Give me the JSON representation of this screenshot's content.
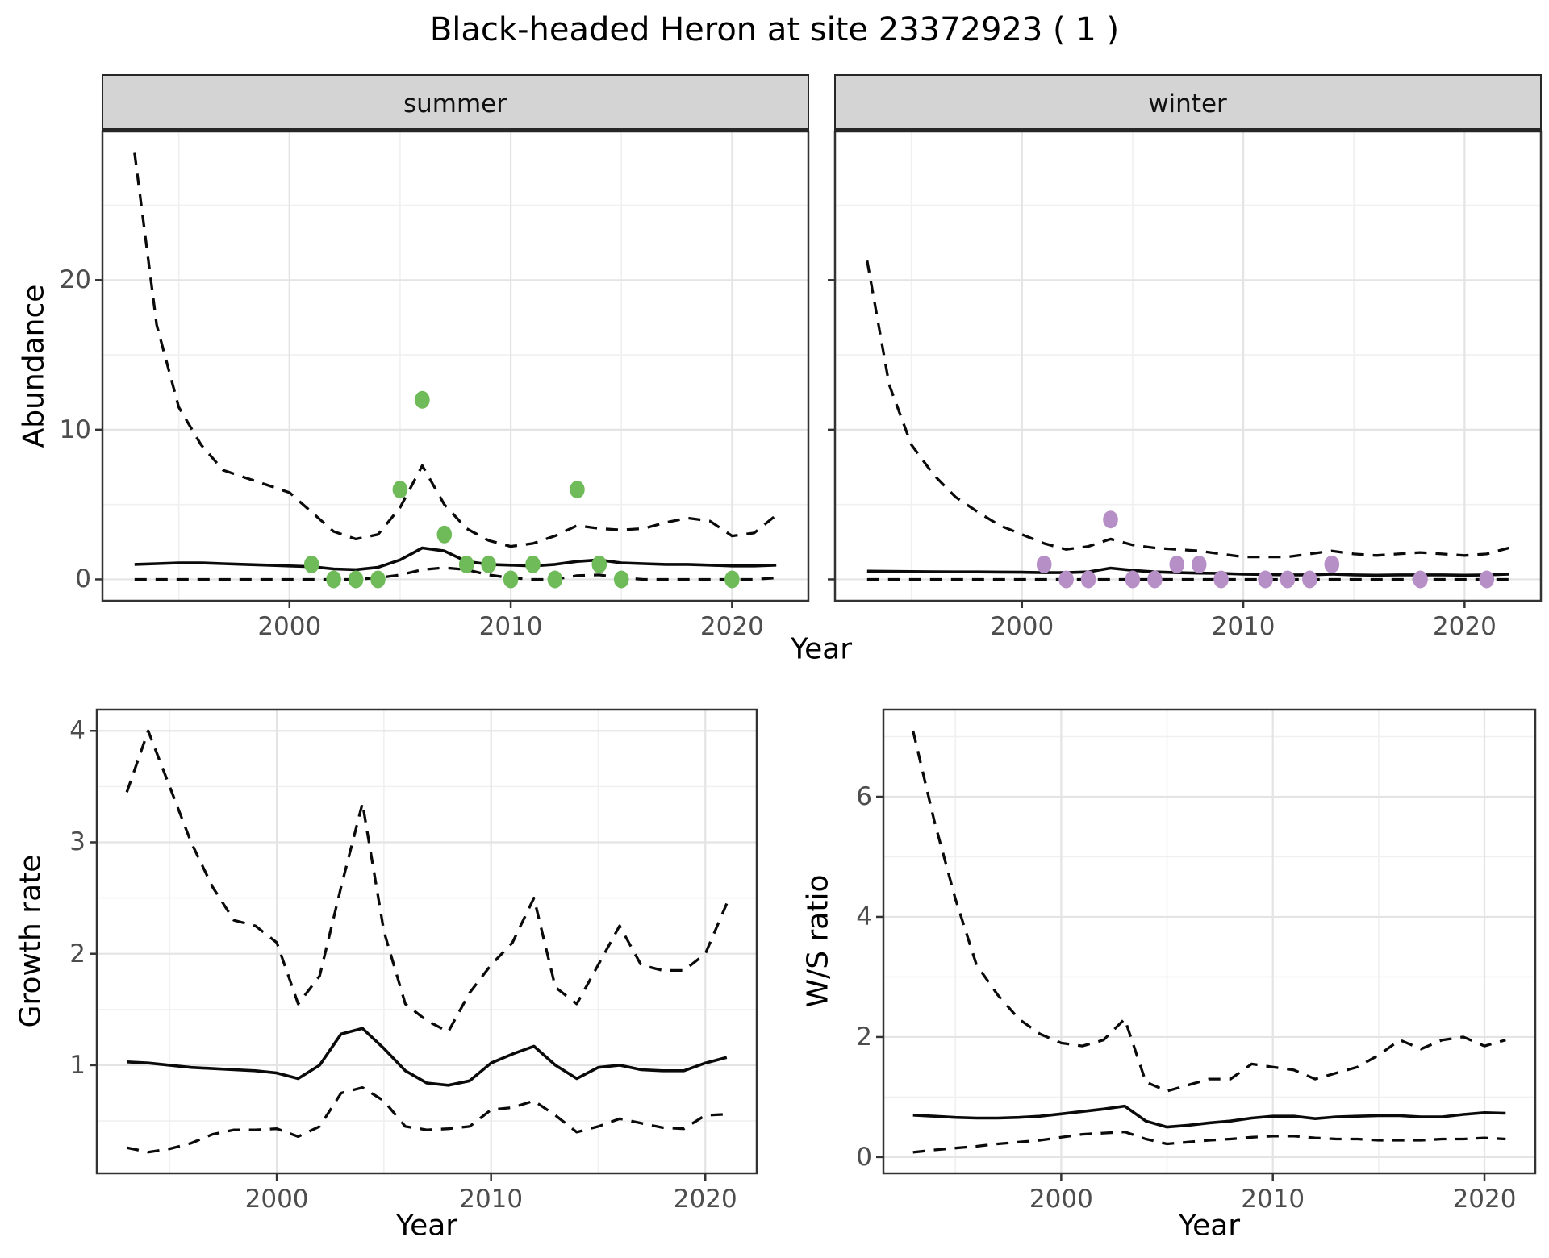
{
  "title": "Black-headed Heron at site 23372923 ( 1 )",
  "colors": {
    "summer_point": "#6fba59",
    "winter_point": "#b78fc7",
    "line": "#0a0a0a",
    "major_grid": "#e4e4e4",
    "minor_grid": "#f0f0f0",
    "panel_border": "#333333",
    "strip_fill": "#d4d4d4",
    "strip_border": "#262626",
    "tick_mark": "#333333",
    "tick_text": "#4d4d4d"
  },
  "chart_data": [
    {
      "id": "abundance_summer",
      "type": "line",
      "facet_label": "summer",
      "xlabel": "Year",
      "ylabel": "Abundance",
      "show_y_labels": true,
      "xlim": [
        1991.55,
        2023.45
      ],
      "ylim": [
        -1.43,
        29.93
      ],
      "x_ticks": [
        2000,
        2010,
        2020
      ],
      "x_minor": [
        1995,
        2005,
        2015
      ],
      "y_ticks": [
        0,
        10,
        20
      ],
      "y_minor": [
        5,
        15,
        25
      ],
      "x": [
        1993,
        1994,
        1995,
        1996,
        1997,
        1998,
        1999,
        2000,
        2001,
        2002,
        2003,
        2004,
        2005,
        2006,
        2007,
        2008,
        2009,
        2010,
        2011,
        2012,
        2013,
        2014,
        2015,
        2016,
        2017,
        2018,
        2019,
        2020,
        2021,
        2022
      ],
      "series": [
        {
          "name": "upper_95ci",
          "style": "dashed",
          "values": [
            28.5,
            17,
            11.5,
            9,
            7.3,
            6.8,
            6.3,
            5.8,
            4.5,
            3.2,
            2.7,
            3.0,
            4.8,
            7.6,
            5.0,
            3.4,
            2.6,
            2.2,
            2.4,
            2.9,
            3.6,
            3.4,
            3.3,
            3.4,
            3.8,
            4.1,
            3.9,
            2.9,
            3.1,
            4.3
          ]
        },
        {
          "name": "median",
          "style": "solid",
          "values": [
            1.0,
            1.05,
            1.1,
            1.1,
            1.05,
            1.0,
            0.95,
            0.9,
            0.85,
            0.7,
            0.65,
            0.8,
            1.3,
            2.1,
            1.9,
            1.2,
            1.0,
            0.95,
            0.9,
            1.0,
            1.2,
            1.3,
            1.1,
            1.05,
            1.0,
            1.0,
            0.95,
            0.9,
            0.9,
            0.95
          ]
        },
        {
          "name": "lower_95ci",
          "style": "dashed",
          "values": [
            0,
            0,
            0,
            0,
            0,
            0,
            0,
            0,
            0,
            0,
            0,
            0.1,
            0.3,
            0.65,
            0.78,
            0.65,
            0.3,
            0.1,
            0,
            0,
            0.25,
            0.3,
            0.1,
            0,
            0,
            0,
            0,
            0,
            0,
            0.1
          ]
        }
      ],
      "points": {
        "name": "observed_counts",
        "color_key": "summer_point",
        "xy": [
          [
            2001,
            1
          ],
          [
            2002,
            0
          ],
          [
            2003,
            0
          ],
          [
            2004,
            0
          ],
          [
            2005,
            6
          ],
          [
            2006,
            12
          ],
          [
            2007,
            3
          ],
          [
            2008,
            1
          ],
          [
            2009,
            1
          ],
          [
            2010,
            0
          ],
          [
            2011,
            1
          ],
          [
            2012,
            0
          ],
          [
            2013,
            6
          ],
          [
            2014,
            1
          ],
          [
            2015,
            0
          ],
          [
            2020,
            0
          ]
        ]
      }
    },
    {
      "id": "abundance_winter",
      "type": "line",
      "facet_label": "winter",
      "xlabel": "Year",
      "ylabel": "Abundance",
      "show_y_labels": false,
      "xlim": [
        1991.55,
        2023.45
      ],
      "ylim": [
        -1.43,
        29.93
      ],
      "x_ticks": [
        2000,
        2010,
        2020
      ],
      "x_minor": [
        1995,
        2005,
        2015
      ],
      "y_ticks": [
        0,
        10,
        20
      ],
      "y_minor": [
        5,
        15,
        25
      ],
      "x": [
        1993,
        1994,
        1995,
        1996,
        1997,
        1998,
        1999,
        2000,
        2001,
        2002,
        2003,
        2004,
        2005,
        2006,
        2007,
        2008,
        2009,
        2010,
        2011,
        2012,
        2013,
        2014,
        2015,
        2016,
        2017,
        2018,
        2019,
        2020,
        2021,
        2022
      ],
      "series": [
        {
          "name": "upper_95ci",
          "style": "dashed",
          "values": [
            21.3,
            13,
            9,
            7,
            5.5,
            4.5,
            3.6,
            3.0,
            2.4,
            2.0,
            2.2,
            2.7,
            2.3,
            2.1,
            2.0,
            1.9,
            1.7,
            1.5,
            1.5,
            1.5,
            1.7,
            1.9,
            1.7,
            1.6,
            1.7,
            1.8,
            1.7,
            1.6,
            1.7,
            2.1
          ]
        },
        {
          "name": "median",
          "style": "solid",
          "values": [
            0.55,
            0.53,
            0.52,
            0.51,
            0.5,
            0.5,
            0.49,
            0.48,
            0.45,
            0.45,
            0.5,
            0.75,
            0.6,
            0.5,
            0.45,
            0.42,
            0.4,
            0.35,
            0.32,
            0.3,
            0.3,
            0.35,
            0.3,
            0.28,
            0.3,
            0.3,
            0.3,
            0.28,
            0.3,
            0.35
          ]
        },
        {
          "name": "lower_95ci",
          "style": "dashed",
          "values": [
            0,
            0,
            0,
            0,
            0,
            0,
            0,
            0,
            0,
            0,
            0,
            0,
            0,
            0,
            0,
            0,
            0,
            0,
            0,
            0,
            0,
            0,
            0,
            0,
            0,
            0,
            0,
            0,
            0,
            0
          ]
        }
      ],
      "points": {
        "name": "observed_counts",
        "color_key": "winter_point",
        "xy": [
          [
            2001,
            1
          ],
          [
            2002,
            0
          ],
          [
            2003,
            0
          ],
          [
            2004,
            4
          ],
          [
            2005,
            0
          ],
          [
            2006,
            0
          ],
          [
            2007,
            1
          ],
          [
            2008,
            1
          ],
          [
            2009,
            0
          ],
          [
            2011,
            0
          ],
          [
            2012,
            0
          ],
          [
            2013,
            0
          ],
          [
            2014,
            1
          ],
          [
            2018,
            0
          ],
          [
            2021,
            0
          ]
        ]
      }
    },
    {
      "id": "growth_rate",
      "type": "line",
      "facet_label": null,
      "xlabel": "Year",
      "ylabel": "Growth rate",
      "show_y_labels": true,
      "xlim": [
        1991.6,
        2022.4
      ],
      "ylim": [
        0.03,
        4.19
      ],
      "x_ticks": [
        2000,
        2010,
        2020
      ],
      "x_minor": [
        1995,
        2005,
        2015
      ],
      "y_ticks": [
        1,
        2,
        3,
        4
      ],
      "y_minor": [
        0.5,
        1.5,
        2.5,
        3.5
      ],
      "x": [
        1993,
        1994,
        1995,
        1996,
        1997,
        1998,
        1999,
        2000,
        2001,
        2002,
        2003,
        2004,
        2005,
        2006,
        2007,
        2008,
        2009,
        2010,
        2011,
        2012,
        2013,
        2014,
        2015,
        2016,
        2017,
        2018,
        2019,
        2020,
        2021
      ],
      "series": [
        {
          "name": "upper_95ci",
          "style": "dashed",
          "values": [
            3.45,
            4.0,
            3.5,
            3.0,
            2.6,
            2.3,
            2.25,
            2.1,
            1.55,
            1.8,
            2.6,
            3.35,
            2.2,
            1.55,
            1.4,
            1.3,
            1.65,
            1.9,
            2.1,
            2.5,
            1.7,
            1.55,
            1.9,
            2.25,
            1.9,
            1.85,
            1.85,
            2.0,
            2.45
          ]
        },
        {
          "name": "median",
          "style": "solid",
          "values": [
            1.03,
            1.02,
            1.0,
            0.98,
            0.97,
            0.96,
            0.95,
            0.93,
            0.88,
            1.0,
            1.28,
            1.33,
            1.15,
            0.95,
            0.84,
            0.82,
            0.86,
            1.02,
            1.1,
            1.17,
            1.0,
            0.88,
            0.98,
            1.0,
            0.96,
            0.95,
            0.95,
            1.02,
            1.07
          ]
        },
        {
          "name": "lower_95ci",
          "style": "dashed",
          "values": [
            0.26,
            0.22,
            0.25,
            0.3,
            0.38,
            0.42,
            0.42,
            0.43,
            0.36,
            0.45,
            0.75,
            0.8,
            0.68,
            0.45,
            0.42,
            0.43,
            0.45,
            0.6,
            0.62,
            0.68,
            0.55,
            0.4,
            0.45,
            0.52,
            0.48,
            0.44,
            0.43,
            0.55,
            0.56
          ]
        }
      ],
      "points": null
    },
    {
      "id": "ws_ratio",
      "type": "line",
      "facet_label": null,
      "xlabel": "Year",
      "ylabel": "W/S ratio",
      "show_y_labels": true,
      "xlim": [
        1991.6,
        2022.4
      ],
      "ylim": [
        -0.27,
        7.45
      ],
      "x_ticks": [
        2000,
        2010,
        2020
      ],
      "x_minor": [
        1995,
        2005,
        2015
      ],
      "y_ticks": [
        0,
        2,
        4,
        6
      ],
      "y_minor": [
        1,
        3,
        5,
        7
      ],
      "x": [
        1993,
        1994,
        1995,
        1996,
        1997,
        1998,
        1999,
        2000,
        2001,
        2002,
        2003,
        2004,
        2005,
        2006,
        2007,
        2008,
        2009,
        2010,
        2011,
        2012,
        2013,
        2014,
        2015,
        2016,
        2017,
        2018,
        2019,
        2020,
        2021
      ],
      "series": [
        {
          "name": "upper_95ci",
          "style": "dashed",
          "values": [
            7.1,
            5.6,
            4.3,
            3.2,
            2.7,
            2.3,
            2.05,
            1.9,
            1.85,
            1.95,
            2.3,
            1.25,
            1.1,
            1.2,
            1.3,
            1.3,
            1.55,
            1.5,
            1.45,
            1.3,
            1.4,
            1.5,
            1.7,
            1.95,
            1.8,
            1.95,
            2.0,
            1.85,
            1.95
          ]
        },
        {
          "name": "median",
          "style": "solid",
          "values": [
            0.7,
            0.68,
            0.66,
            0.65,
            0.65,
            0.66,
            0.68,
            0.72,
            0.76,
            0.8,
            0.85,
            0.6,
            0.5,
            0.53,
            0.57,
            0.6,
            0.65,
            0.68,
            0.68,
            0.64,
            0.67,
            0.68,
            0.69,
            0.69,
            0.67,
            0.67,
            0.71,
            0.74,
            0.73
          ]
        },
        {
          "name": "lower_95ci",
          "style": "dashed",
          "values": [
            0.08,
            0.12,
            0.15,
            0.18,
            0.22,
            0.25,
            0.28,
            0.33,
            0.38,
            0.4,
            0.42,
            0.3,
            0.22,
            0.25,
            0.28,
            0.3,
            0.33,
            0.35,
            0.35,
            0.32,
            0.3,
            0.3,
            0.28,
            0.28,
            0.28,
            0.3,
            0.3,
            0.32,
            0.3
          ]
        }
      ],
      "points": null
    }
  ]
}
